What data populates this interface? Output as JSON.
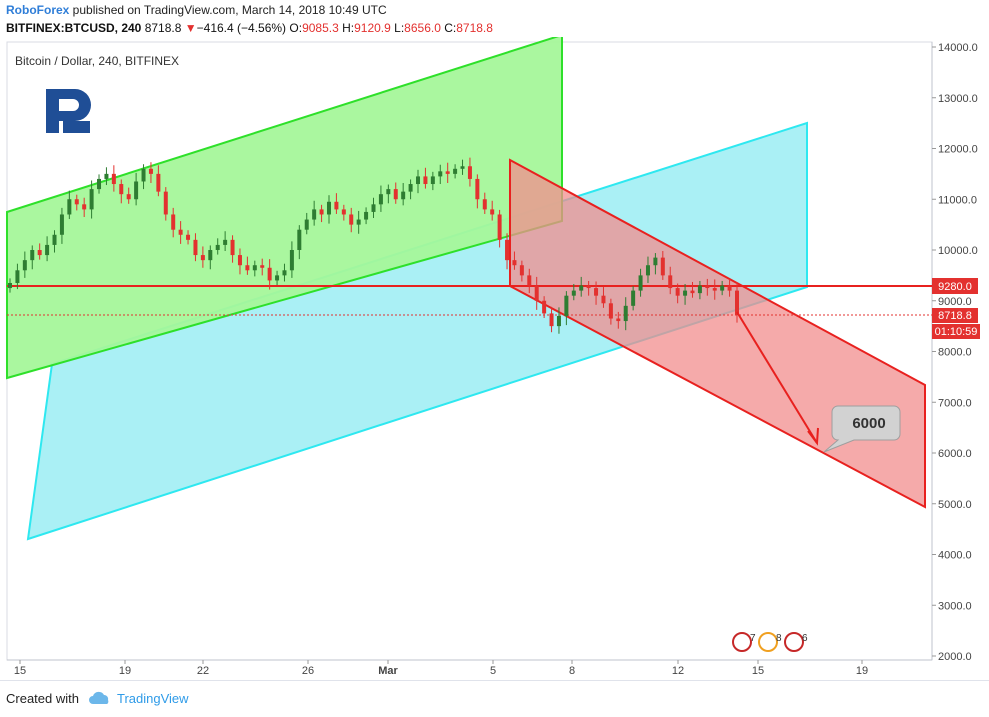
{
  "header": {
    "brand": "RoboForex",
    "published_text": " published on TradingView.com, March 14, 2018 10:49 UTC",
    "symbol": "BITFINEX:BTCUSD, 240",
    "last": "8718.8",
    "change_arrow": "▼",
    "change": "−416.4 (−4.56%)",
    "o_label": "O:",
    "o_value": "9085.3",
    "h_label": "H:",
    "h_value": "9120.9",
    "l_label": "L:",
    "l_value": "8656.0",
    "c_label": "C:",
    "c_value": "8718.8"
  },
  "chart_title": "Bitcoin / Dollar, 240, BITFINEX",
  "footer": {
    "created_with": "Created with",
    "brand": "TradingView",
    "logo_icon": "tradingview-cloud-icon"
  },
  "colors": {
    "up": "#2e7d32",
    "down": "#e3312f",
    "green_channel_fill": "#a5f79a",
    "green_channel_line": "#2ee02a",
    "cyan_channel_fill": "#aaf0f5",
    "cyan_channel_line": "#2ee8f0",
    "red_channel_fill": "#f7a4a4",
    "red_channel_line": "#e8211f",
    "level_line": "#e8211f"
  },
  "chart_data": {
    "type": "candlestick",
    "title": "Bitcoin / Dollar, 240, BITFINEX",
    "x_axis": {
      "ticks": [
        "15",
        "19",
        "22",
        "26",
        "Mar",
        "5",
        "8",
        "12",
        "15",
        "19"
      ],
      "unit": "date (Feb 15 – Mar 19, 2018)"
    },
    "y_axis": {
      "ticks": [
        "2000.0",
        "3000.0",
        "4000.0",
        "5000.0",
        "6000.0",
        "7000.0",
        "8000.0",
        "9000.0",
        "10000.0",
        "11000.0",
        "12000.0",
        "13000.0",
        "14000.0"
      ],
      "range": [
        1900,
        14100
      ]
    },
    "price_labels": [
      {
        "text": "9280.0",
        "value": 9280,
        "color": "#e3312f",
        "role": "horizontal-level"
      },
      {
        "text": "8718.8",
        "value": 8718.8,
        "color": "#e3312f",
        "role": "last-price"
      },
      {
        "text": "01:10:59",
        "color": "#e3312f",
        "role": "countdown"
      }
    ],
    "horizontal_level": 9280,
    "last_price": 8718.8,
    "target_label": "6000",
    "event_badges": [
      {
        "count": "7"
      },
      {
        "count": "8"
      },
      {
        "count": "6"
      }
    ],
    "closes": [
      9350,
      9600,
      9800,
      10000,
      9900,
      10100,
      10300,
      10700,
      11000,
      10900,
      10800,
      11200,
      11400,
      11500,
      11300,
      11100,
      11000,
      11350,
      11600,
      11500,
      11150,
      10700,
      10400,
      10300,
      10200,
      9900,
      9800,
      10000,
      10100,
      10200,
      9900,
      9700,
      9600,
      9700,
      9650,
      9400,
      9500,
      9600,
      10000,
      10400,
      10600,
      10800,
      10700,
      10950,
      10800,
      10700,
      10500,
      10600,
      10750,
      10900,
      11100,
      11200,
      11000,
      11150,
      11300,
      11450,
      11300,
      11450,
      11550,
      11500,
      11600,
      11650,
      11400,
      11000,
      10800,
      10700,
      10200,
      9800,
      9700,
      9500,
      9300,
      9000,
      8750,
      8500,
      8700,
      9100,
      9200,
      9300,
      9250,
      9100,
      8950,
      8650,
      8600,
      8900,
      9200,
      9500,
      9700,
      9850,
      9500,
      9250,
      9100,
      9200,
      9150,
      9300,
      9250,
      9200,
      9300,
      9200,
      8718.8
    ],
    "channels": [
      {
        "name": "",
        "color": "green",
        "upper": [
          [
            0,
            10800
          ],
          [
            99,
            14200
          ]
        ],
        "lower": [
          [
            0,
            7450
          ],
          [
            99,
            10900
          ]
        ]
      },
      {
        "name": "",
        "color": "cyan",
        "upper": [
          [
            40,
            10700
          ],
          [
            175,
            12500
          ]
        ],
        "lower": [
          [
            40,
            4300
          ],
          [
            175,
            9200
          ]
        ]
      },
      {
        "name": "",
        "color": "red",
        "upper": [
          [
            114,
            11800
          ],
          [
            172,
            7300
          ]
        ],
        "lower": [
          [
            114,
            9300
          ],
          [
            172,
            4900
          ]
        ]
      }
    ]
  }
}
